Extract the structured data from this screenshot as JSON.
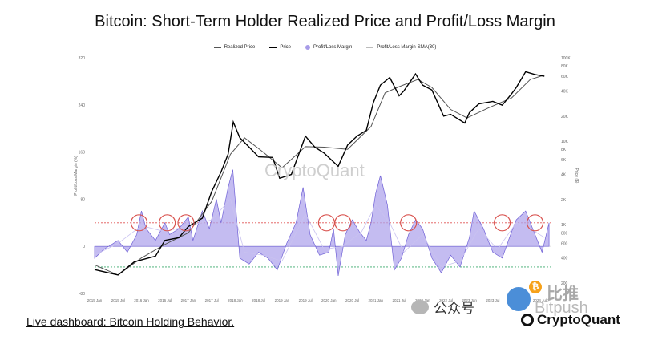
{
  "title": "Bitcoin: Short-Term Holder Realized Price and Profit/Loss Margin",
  "legend": {
    "realized_price": "Realized Price",
    "price": "Price",
    "margin": "Profit/Loss Margin",
    "margin_sma": "Profit/Loss Margin-SMA(30)"
  },
  "watermark": "CryptoQuant",
  "footer": {
    "link_text": "Live dashboard: Bitcoin Holding Behavior.",
    "brand": "CryptoQuant",
    "wechat": "公众号",
    "bitpush_en": "Bitpush",
    "bitpush_cn": "比推",
    "coin_symbol": "₿"
  },
  "colors": {
    "price": "#000000",
    "realized_price": "#555555",
    "margin_fill": "#b0a6ec",
    "margin_line": "#6f60d6",
    "circle": "#d9534f",
    "ref_line_red": "#e05555",
    "ref_line_green": "#3aa86b"
  },
  "chart_data": {
    "type": "line",
    "title": "Bitcoin: Short-Term Holder Realized Price and Profit/Loss Margin",
    "xlabel": "",
    "ylabel_left": "Profit/Loss Margin (%)",
    "ylabel_right": "Price ($)",
    "x_ticks": [
      "2015 Jan",
      "2015 Jul",
      "2016 Jan",
      "2016 Jul",
      "2017 Jan",
      "2017 Jul",
      "2018 Jan",
      "2018 Jul",
      "2019 Jan",
      "2019 Jul",
      "2020 Jan",
      "2020 Jul",
      "2021 Jan",
      "2021 Jul",
      "2022 Jan",
      "2022 Jul",
      "2023 Jan",
      "2023 Jul",
      "2024 Jan",
      "2024 Jul"
    ],
    "y_left_ticks": [
      "320",
      "240",
      "160",
      "80",
      "0",
      "-80"
    ],
    "y_left_range": [
      -80,
      320
    ],
    "y_right_ticks": [
      "100K",
      "80K",
      "60K",
      "40K",
      "20K",
      "10K",
      "8K",
      "6K",
      "4K",
      "2K",
      "1K",
      "800",
      "600",
      "400",
      "200"
    ],
    "y_right_scale": "log",
    "reference_lines": [
      {
        "name": "upper",
        "value": 40
      },
      {
        "name": "lower",
        "value": -35
      }
    ],
    "series": [
      {
        "name": "Price",
        "x": [
          2015.0,
          2015.5,
          2015.85,
          2016.3,
          2016.5,
          2016.8,
          2017.0,
          2017.3,
          2017.5,
          2017.7,
          2017.85,
          2017.96,
          2018.1,
          2018.3,
          2018.5,
          2018.8,
          2018.95,
          2019.2,
          2019.5,
          2019.7,
          2019.9,
          2020.2,
          2020.4,
          2020.6,
          2020.8,
          2020.95,
          2021.1,
          2021.3,
          2021.5,
          2021.6,
          2021.85,
          2022.0,
          2022.2,
          2022.45,
          2022.6,
          2022.9,
          2023.0,
          2023.2,
          2023.5,
          2023.7,
          2023.9,
          2024.0,
          2024.2,
          2024.4,
          2024.6
        ],
        "values": [
          290,
          250,
          360,
          420,
          650,
          700,
          950,
          1200,
          2500,
          4300,
          7000,
          17000,
          11000,
          8500,
          6500,
          6400,
          3600,
          4000,
          11500,
          8500,
          7200,
          5000,
          9000,
          11500,
          13500,
          29000,
          47000,
          58000,
          35000,
          40000,
          64000,
          47000,
          41000,
          20000,
          21000,
          16500,
          22000,
          28000,
          30000,
          27000,
          37000,
          44000,
          68000,
          63000,
          60000
        ]
      },
      {
        "name": "Realized Price",
        "x": [
          2015.0,
          2015.5,
          2016.0,
          2016.5,
          2017.0,
          2017.5,
          2017.9,
          2018.2,
          2018.6,
          2019.0,
          2019.5,
          2019.9,
          2020.4,
          2020.9,
          2021.2,
          2021.5,
          2021.9,
          2022.2,
          2022.6,
          2022.95,
          2023.4,
          2023.9,
          2024.3,
          2024.6
        ],
        "values": [
          330,
          250,
          400,
          580,
          800,
          1900,
          7000,
          11000,
          7400,
          4800,
          8600,
          8500,
          8000,
          15000,
          38000,
          45000,
          55000,
          44000,
          24000,
          19000,
          25000,
          33000,
          55000,
          62000
        ]
      },
      {
        "name": "Profit/Loss Margin",
        "x": [
          2015.0,
          2015.2,
          2015.5,
          2015.7,
          2015.9,
          2016.0,
          2016.1,
          2016.3,
          2016.5,
          2016.6,
          2016.8,
          2017.0,
          2017.1,
          2017.3,
          2017.45,
          2017.6,
          2017.7,
          2017.85,
          2017.95,
          2018.1,
          2018.3,
          2018.5,
          2018.7,
          2018.9,
          2019.1,
          2019.3,
          2019.45,
          2019.6,
          2019.8,
          2020.0,
          2020.1,
          2020.2,
          2020.35,
          2020.5,
          2020.65,
          2020.8,
          2020.9,
          2021.0,
          2021.1,
          2021.25,
          2021.4,
          2021.55,
          2021.7,
          2021.85,
          2022.0,
          2022.2,
          2022.4,
          2022.6,
          2022.8,
          2023.0,
          2023.1,
          2023.3,
          2023.5,
          2023.7,
          2023.9,
          2024.0,
          2024.2,
          2024.4,
          2024.55,
          2024.7
        ],
        "values": [
          -20,
          -5,
          10,
          -10,
          20,
          60,
          30,
          10,
          40,
          20,
          30,
          50,
          10,
          60,
          30,
          80,
          40,
          100,
          130,
          -20,
          -30,
          -10,
          -20,
          -40,
          5,
          40,
          100,
          20,
          -15,
          -10,
          30,
          -50,
          20,
          45,
          25,
          10,
          40,
          90,
          120,
          70,
          -40,
          -20,
          20,
          45,
          30,
          -20,
          -45,
          -15,
          -35,
          15,
          60,
          30,
          -10,
          -20,
          25,
          45,
          60,
          20,
          -10,
          40
        ]
      },
      {
        "name": "Profit/Loss Margin-SMA(30)",
        "x": [
          2015.0,
          2015.5,
          2016.0,
          2016.5,
          2017.0,
          2017.5,
          2017.9,
          2018.2,
          2018.6,
          2019.0,
          2019.5,
          2019.9,
          2020.3,
          2020.7,
          2021.0,
          2021.3,
          2021.6,
          2022.0,
          2022.4,
          2022.8,
          2023.2,
          2023.6,
          2024.0,
          2024.3,
          2024.6
        ],
        "values": [
          -15,
          5,
          35,
          25,
          35,
          45,
          80,
          -10,
          -15,
          -25,
          55,
          -5,
          0,
          25,
          70,
          40,
          -10,
          20,
          -35,
          -25,
          30,
          -5,
          40,
          30,
          15
        ]
      }
    ],
    "highlight_circles": [
      {
        "x": 2015.95,
        "y": 40
      },
      {
        "x": 2016.55,
        "y": 40
      },
      {
        "x": 2016.95,
        "y": 40
      },
      {
        "x": 2019.95,
        "y": 40
      },
      {
        "x": 2020.3,
        "y": 40
      },
      {
        "x": 2021.7,
        "y": 40
      },
      {
        "x": 2023.7,
        "y": 40
      },
      {
        "x": 2024.4,
        "y": 40
      }
    ]
  }
}
